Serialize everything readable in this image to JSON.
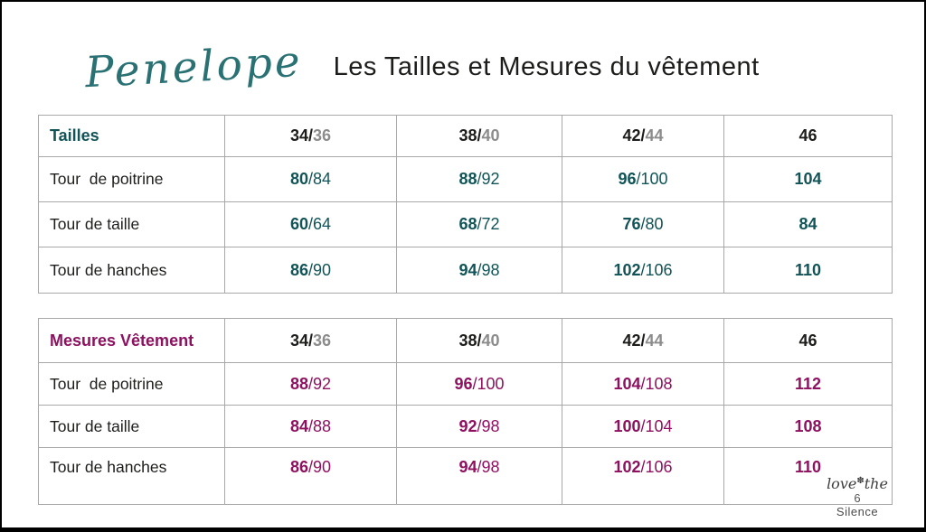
{
  "header": {
    "brand_script": "Penelope",
    "title": "Les Tailles et Mesures du vêtement"
  },
  "colors": {
    "teal_accent": "#115356",
    "magenta_accent": "#8e1160",
    "text_black": "#1d1d1b",
    "header_secondary_gray": "#8c8c8c",
    "table_border": "#a8a8a8",
    "frame": "#000000",
    "brand_script_teal": "#2a7173"
  },
  "tables": [
    {
      "title": "Tailles",
      "accent": "#115356",
      "columns": [
        {
          "primary": "34/",
          "secondary": "36"
        },
        {
          "primary": "38/",
          "secondary": "40"
        },
        {
          "primary": "42/",
          "secondary": "44"
        },
        {
          "primary": "46",
          "secondary": ""
        }
      ],
      "rows": [
        {
          "label": "Tour  de poitrine",
          "values": [
            {
              "primary": "80",
              "secondary": "/84"
            },
            {
              "primary": "88",
              "secondary": "/92"
            },
            {
              "primary": "96",
              "secondary": "/100"
            },
            {
              "primary": "104",
              "secondary": ""
            }
          ]
        },
        {
          "label": "Tour de taille",
          "values": [
            {
              "primary": "60",
              "secondary": "/64"
            },
            {
              "primary": "68",
              "secondary": "/72"
            },
            {
              "primary": "76",
              "secondary": "/80"
            },
            {
              "primary": "84",
              "secondary": ""
            }
          ]
        },
        {
          "label": "Tour de hanches",
          "values": [
            {
              "primary": "86",
              "secondary": "/90"
            },
            {
              "primary": "94",
              "secondary": "/98"
            },
            {
              "primary": "102",
              "secondary": "/106"
            },
            {
              "primary": "110",
              "secondary": ""
            }
          ]
        }
      ]
    },
    {
      "title": "Mesures Vêtement",
      "accent": "#8e1160",
      "columns": [
        {
          "primary": "34/",
          "secondary": "36"
        },
        {
          "primary": "38/",
          "secondary": "40"
        },
        {
          "primary": "42/",
          "secondary": "44"
        },
        {
          "primary": "46",
          "secondary": ""
        }
      ],
      "rows": [
        {
          "label": "Tour  de poitrine",
          "values": [
            {
              "primary": "88",
              "secondary": "/92"
            },
            {
              "primary": "96",
              "secondary": "/100"
            },
            {
              "primary": "104",
              "secondary": "/108"
            },
            {
              "primary": "112",
              "secondary": ""
            }
          ]
        },
        {
          "label": "Tour de taille",
          "values": [
            {
              "primary": "84",
              "secondary": "/88"
            },
            {
              "primary": "92",
              "secondary": "/98"
            },
            {
              "primary": "100",
              "secondary": "/104"
            },
            {
              "primary": "108",
              "secondary": ""
            }
          ]
        },
        {
          "label": "Tour de hanches",
          "values": [
            {
              "primary": "86",
              "secondary": "/90"
            },
            {
              "primary": "94",
              "secondary": "/98"
            },
            {
              "primary": "102",
              "secondary": "/106"
            },
            {
              "primary": "110",
              "secondary": ""
            }
          ]
        }
      ]
    }
  ],
  "footer": {
    "brand_left": "love",
    "flower": "✽",
    "brand_right": "the",
    "page_number": "6",
    "brand_bottom": "Silence"
  }
}
